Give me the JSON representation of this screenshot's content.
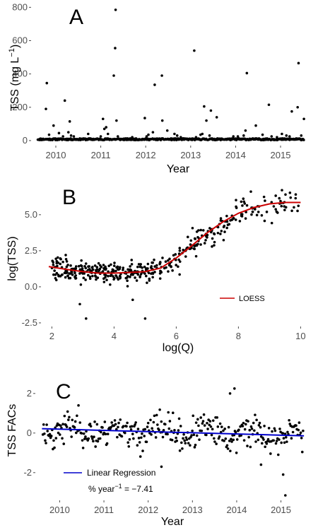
{
  "chart_data": [
    {
      "panel": "A",
      "type": "scatter",
      "title": "",
      "xlabel": "Year",
      "ylabel": "TSS (mg L",
      "ylabel_sup": "−1",
      "ylabel_end": ")",
      "xlim": [
        2009.45,
        2015.55
      ],
      "ylim": [
        -30,
        810
      ],
      "x_ticks": [
        2010,
        2011,
        2012,
        2013,
        2014,
        2015
      ],
      "y_ticks": [
        0,
        200,
        400,
        600,
        800
      ],
      "grid": false,
      "points": {
        "x": [
          2009.78,
          2009.8,
          2009.95,
          2010.2,
          2010.31,
          2010.72,
          2011.05,
          2011.29,
          2011.32,
          2011.33,
          2011.35,
          2011.98,
          2012.16,
          2012.2,
          2012.36,
          2012.37,
          2012.48,
          2012.78,
          2013.08,
          2013.3,
          2013.35,
          2013.45,
          2013.58,
          2013.82,
          2014.05,
          2014.22,
          2014.25,
          2014.45,
          2014.74,
          2015.03,
          2015.25,
          2015.38,
          2015.4,
          2015.52,
          2009.85,
          2010.07,
          2010.16,
          2010.28,
          2010.34,
          2010.4,
          2011.0,
          2011.08,
          2011.12,
          2011.16,
          2011.38,
          2011.7,
          2012.02,
          2012.06,
          2012.64,
          2012.7,
          2013.12,
          2013.22,
          2013.26,
          2013.42,
          2013.95,
          2014.18,
          2014.6,
          2014.8,
          2014.92,
          2015.13,
          2015.2,
          2015.46
        ],
        "y": [
          190,
          345,
          90,
          240,
          115,
          40,
          130,
          390,
          555,
          785,
          120,
          135,
          50,
          335,
          390,
          120,
          60,
          20,
          540,
          205,
          120,
          180,
          140,
          10,
          25,
          60,
          405,
          90,
          215,
          40,
          175,
          200,
          465,
          130,
          35,
          45,
          25,
          50,
          30,
          25,
          25,
          70,
          80,
          40,
          25,
          20,
          25,
          35,
          40,
          30,
          20,
          35,
          40,
          30,
          25,
          30,
          35,
          25,
          20,
          30,
          25,
          30
        ]
      },
      "baseline": {
        "y": 3,
        "x_start": 2009.6,
        "x_end": 2015.52
      }
    },
    {
      "panel": "B",
      "type": "scatter",
      "title": "",
      "xlabel": "log(Q)",
      "ylabel": "log(TSS)",
      "xlim": [
        1.65,
        10.15
      ],
      "ylim": [
        -2.75,
        7.05
      ],
      "x_ticks": [
        2,
        4,
        6,
        8,
        10
      ],
      "y_ticks": [
        -2.5,
        0.0,
        2.5,
        5.0
      ],
      "y_tick_labels": [
        "-2.5",
        "0.0",
        "2.5",
        "5.0"
      ],
      "grid": false,
      "legend": {
        "position": "bottom-right",
        "entries": [
          {
            "name": "LOESS",
            "color": "#cc0000"
          }
        ]
      },
      "loess": {
        "x": [
          1.9,
          2.5,
          3.0,
          3.5,
          4.0,
          4.5,
          5.0,
          5.5,
          6.0,
          6.5,
          7.0,
          7.5,
          8.0,
          8.5,
          9.0,
          9.5,
          10.0
        ],
        "y": [
          1.4,
          1.2,
          1.05,
          0.95,
          0.95,
          1.0,
          1.05,
          1.3,
          2.0,
          2.85,
          3.75,
          4.5,
          5.1,
          5.5,
          5.75,
          5.85,
          5.85
        ]
      }
    },
    {
      "panel": "C",
      "type": "scatter",
      "title": "",
      "xlabel": "Year",
      "ylabel": "TSS FACs",
      "xlim": [
        2009.45,
        2015.55
      ],
      "ylim": [
        -3.4,
        2.6
      ],
      "x_ticks": [
        2010,
        2011,
        2012,
        2013,
        2014,
        2015
      ],
      "y_ticks": [
        -2,
        0,
        2
      ],
      "grid": false,
      "legend": {
        "position": "bottom-left",
        "entries": [
          {
            "name": "Linear Regression",
            "color": "#0000cc"
          }
        ]
      },
      "regression": {
        "x": [
          2009.6,
          2015.52
        ],
        "y": [
          0.22,
          -0.14
        ]
      },
      "annotation_prefix": "% year",
      "annotation_sup": "−1",
      "annotation_suffix": " = −7.41"
    }
  ]
}
